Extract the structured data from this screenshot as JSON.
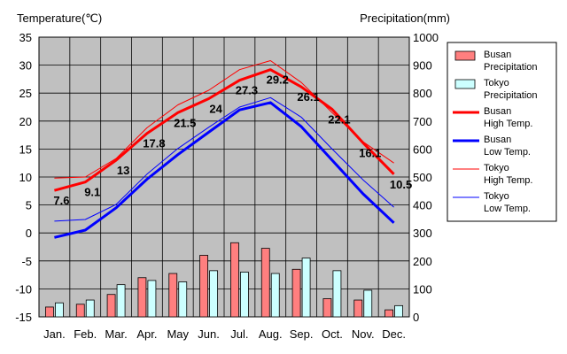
{
  "chart_data": {
    "type": "bar",
    "title": "",
    "ylabel_left": "Temperature(℃)",
    "ylabel_right": "Precipitation(mm)",
    "ylim_left": [
      -15,
      35
    ],
    "ylim_right": [
      0,
      1000
    ],
    "yticks_left": [
      "35",
      "30",
      "25",
      "20",
      "15",
      "10",
      "5",
      "0",
      "-5",
      "-10",
      "-15"
    ],
    "yticks_right": [
      "1000",
      "900",
      "800",
      "700",
      "600",
      "500",
      "400",
      "300",
      "200",
      "100",
      "0"
    ],
    "categories": [
      "Jan.",
      "Feb.",
      "Mar.",
      "Apr.",
      "May",
      "Jun.",
      "Jul.",
      "Aug.",
      "Sep.",
      "Oct.",
      "Nov.",
      "Dec."
    ],
    "grid": true,
    "legend_position": "right",
    "bar_series": [
      {
        "name": "Busan\nPrecipitation",
        "color": "#ff7f7f",
        "values": [
          35,
          45,
          80,
          140,
          155,
          220,
          265,
          245,
          170,
          65,
          60,
          25
        ]
      },
      {
        "name": "Tokyo\nPrecipitation",
        "color": "#ccffff",
        "values": [
          50,
          60,
          115,
          130,
          125,
          165,
          160,
          155,
          210,
          165,
          95,
          40
        ]
      }
    ],
    "line_series": [
      {
        "name": "Busan\nHigh Temp.",
        "color": "#ff0000",
        "width": 3,
        "values": [
          7.6,
          9.1,
          13,
          17.8,
          21.5,
          24,
          27.3,
          29.2,
          26.1,
          22.1,
          16.1,
          10.5
        ]
      },
      {
        "name": "Busan\nLow Temp.",
        "color": "#0000ff",
        "width": 3,
        "values": [
          -0.8,
          0.5,
          4.5,
          9.6,
          14.0,
          18.0,
          22.0,
          23.3,
          19.0,
          13.0,
          7.0,
          1.8
        ]
      },
      {
        "name": "Tokyo\nHigh Temp.",
        "color": "#ff0000",
        "width": 1,
        "values": [
          9.8,
          10,
          13.3,
          18.8,
          22.9,
          25.5,
          29.2,
          30.8,
          26.9,
          21.5,
          16.3,
          12.5
        ]
      },
      {
        "name": "Tokyo\nLow Temp.",
        "color": "#0000ff",
        "width": 1,
        "values": [
          2.1,
          2.4,
          5.1,
          10.5,
          15.1,
          18.9,
          22.5,
          24.2,
          20.7,
          15.0,
          9.5,
          4.6
        ]
      }
    ],
    "data_labels": [
      "7.6",
      "9.1",
      "13",
      "17.8",
      "21.5",
      "24",
      "27.3",
      "29.2",
      "26.1",
      "22.1",
      "16.1",
      "10.5"
    ]
  }
}
